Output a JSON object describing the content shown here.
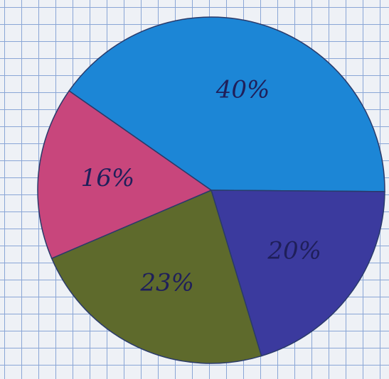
{
  "chart_data": {
    "type": "pie",
    "values": [
      40,
      20,
      23,
      16
    ],
    "value_labels": [
      "40%",
      "20%",
      "23%",
      "16%"
    ],
    "colors": [
      "#1c86d6",
      "#3b3a9e",
      "#5e6a2c",
      "#c8467c"
    ]
  }
}
